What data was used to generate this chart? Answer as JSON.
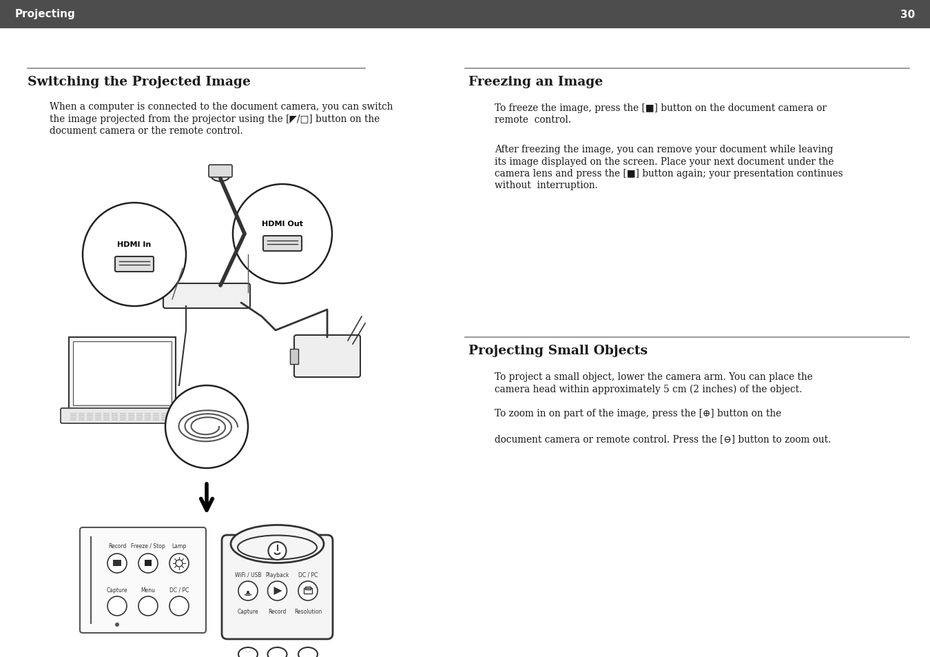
{
  "header_bg": "#4d4d4d",
  "header_text": "Projecting",
  "header_page": "30",
  "header_text_color": "#ffffff",
  "header_fontsize": 11,
  "bg_color": "#ffffff",
  "body_text_color": "#1a1a1a",
  "divider_color": "#888888",
  "section1_title": "Switching the Projected Image",
  "section1_body_line1": "When a computer is connected to the document camera, you can switch",
  "section1_body_line2": "the image projected from the projector using the [◤/□] button on the",
  "section1_body_line3": "document camera or the remote control.",
  "section2_title": "Freezing an Image",
  "section2_body1_line1": "To freeze the image, press the [■] button on the document camera or",
  "section2_body1_line2": "remote  control.",
  "section2_body2_line1": "After freezing the image, you can remove your document while leaving",
  "section2_body2_line2": "its image displayed on the screen. Place your next document under the",
  "section2_body2_line3": "camera lens and press the [■] button again; your presentation continues",
  "section2_body2_line4": "without  interruption.",
  "section3_title": "Projecting Small Objects",
  "section3_body1_line1": "To project a small object, lower the camera arm. You can place the",
  "section3_body1_line2": "camera head within approximately 5 cm (2 inches) of the object.",
  "section3_body2_line1": "To zoom in on part of the image, press the [⊕] button on the",
  "section3_body2_line2": "",
  "section3_body2_line3": "document camera or remote control. Press the [⊖] button to zoom out."
}
